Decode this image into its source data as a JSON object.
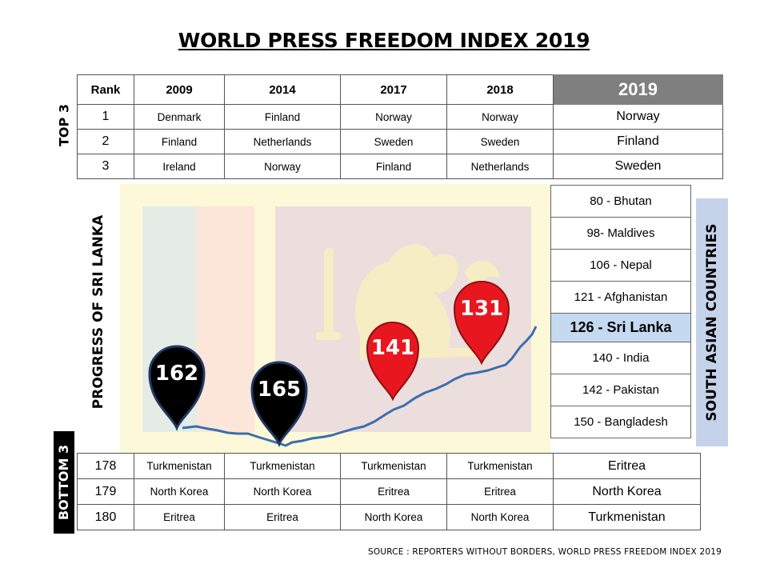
{
  "title": "WORLD PRESS FREEDOM INDEX 2019",
  "labels": {
    "top3": "TOP 3",
    "bottom3": "BOTTOM 3",
    "progress": "PROGRESS OF SRI LANKA",
    "south_asia": "SOUTH ASIAN COUNTRIES"
  },
  "top_table": {
    "headers": [
      "Rank",
      "2009",
      "2014",
      "2017",
      "2018",
      "2019"
    ],
    "rows": [
      [
        "1",
        "Denmark",
        "Finland",
        "Norway",
        "Norway",
        "Norway"
      ],
      [
        "2",
        "Finland",
        "Netherlands",
        "Sweden",
        "Sweden",
        "Finland"
      ],
      [
        "3",
        "Ireland",
        "Norway",
        "Finland",
        "Netherlands",
        "Sweden"
      ]
    ]
  },
  "bottom_table": {
    "rows": [
      [
        "178",
        "Turkmenistan",
        "Turkmenistan",
        "Turkmenistan",
        "Turkmenistan",
        "Eritrea"
      ],
      [
        "179",
        "North Korea",
        "North Korea",
        "Eritrea",
        "Eritrea",
        "North Korea"
      ],
      [
        "180",
        "Eritrea",
        "Eritrea",
        "North Korea",
        "North Korea",
        "Turkmenistan"
      ]
    ]
  },
  "south_asia": [
    "80 - Bhutan",
    "98- Maldives",
    "106 - Nepal",
    "121 - Afghanistan",
    "126  - Sri Lanka",
    "140 - India",
    "142 - Pakistan",
    "150 - Bangladesh"
  ],
  "south_asia_highlight_index": 4,
  "markers": [
    {
      "value": "162",
      "color": "#000000"
    },
    {
      "value": "165",
      "color": "#000000"
    },
    {
      "value": "141",
      "color": "#e8171f"
    },
    {
      "value": "131",
      "color": "#e8171f"
    }
  ],
  "colors": {
    "flag_border": "#fdf8d8",
    "flag_green": "#e5ece6",
    "flag_orange": "#fbe6d9",
    "flag_maroon": "#ecdedd",
    "lion": "#f6edc4",
    "trend_line": "#3a6fae",
    "highlight_header": "#7f7f7f",
    "highlight_row": "#c5d9f1"
  },
  "source": "SOURCE : REPORTERS WITHOUT BORDERS, WORLD PRESS FREEDOM INDEX 2019"
}
